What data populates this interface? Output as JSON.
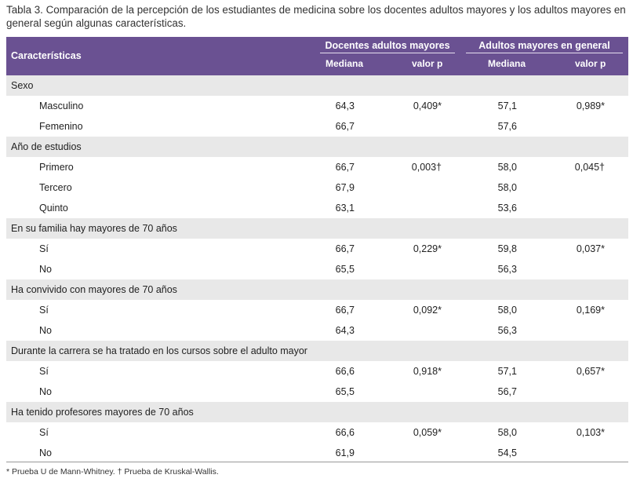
{
  "caption": "Tabla 3. Comparación de la percepción de los estudiantes de medicina sobre los docentes adultos mayores y los adultos mayores en general según algunas características.",
  "header": {
    "characteristics": "Características",
    "group1": "Docentes adultos mayores",
    "group2": "Adultos mayores en general",
    "median": "Mediana",
    "pvalue": "valor p"
  },
  "sections": [
    {
      "title": "Sexo",
      "rows": [
        {
          "label": "Masculino",
          "m1": "64,3",
          "p1": "0,409*",
          "m2": "57,1",
          "p2": "0,989*"
        },
        {
          "label": "Femenino",
          "m1": "66,7",
          "p1": "",
          "m2": "57,6",
          "p2": ""
        }
      ]
    },
    {
      "title": "Año de estudios",
      "rows": [
        {
          "label": "Primero",
          "m1": "66,7",
          "p1": "0,003†",
          "m2": "58,0",
          "p2": "0,045†"
        },
        {
          "label": "Tercero",
          "m1": "67,9",
          "p1": "",
          "m2": "58,0",
          "p2": ""
        },
        {
          "label": "Quinto",
          "m1": "63,1",
          "p1": "",
          "m2": "53,6",
          "p2": ""
        }
      ]
    },
    {
      "title": "En su familia hay mayores de 70 años",
      "rows": [
        {
          "label": "Sí",
          "m1": "66,7",
          "p1": "0,229*",
          "m2": "59,8",
          "p2": "0,037*"
        },
        {
          "label": "No",
          "m1": "65,5",
          "p1": "",
          "m2": "56,3",
          "p2": ""
        }
      ]
    },
    {
      "title": "Ha convivido con mayores de 70 años",
      "rows": [
        {
          "label": "Sí",
          "m1": "66,7",
          "p1": "0,092*",
          "m2": "58,0",
          "p2": "0,169*"
        },
        {
          "label": "No",
          "m1": "64,3",
          "p1": "",
          "m2": "56,3",
          "p2": ""
        }
      ]
    },
    {
      "title": "Durante la carrera se ha tratado en los cursos sobre el adulto mayor",
      "rows": [
        {
          "label": "Sí",
          "m1": "66,6",
          "p1": "0,918*",
          "m2": "57,1",
          "p2": "0,657*"
        },
        {
          "label": "No",
          "m1": "65,5",
          "p1": "",
          "m2": "56,7",
          "p2": ""
        }
      ]
    },
    {
      "title": "Ha tenido profesores mayores de 70 años",
      "rows": [
        {
          "label": "Sí",
          "m1": "66,6",
          "p1": "0,059*",
          "m2": "58,0",
          "p2": "0,103*"
        },
        {
          "label": "No",
          "m1": "61,9",
          "p1": "",
          "m2": "54,5",
          "p2": ""
        }
      ]
    }
  ],
  "footnote": "* Prueba U de Mann-Whitney. † Prueba de Kruskal-Wallis.",
  "colors": {
    "header_bg": "#6a5192",
    "section_bg": "#e8e8e8"
  }
}
